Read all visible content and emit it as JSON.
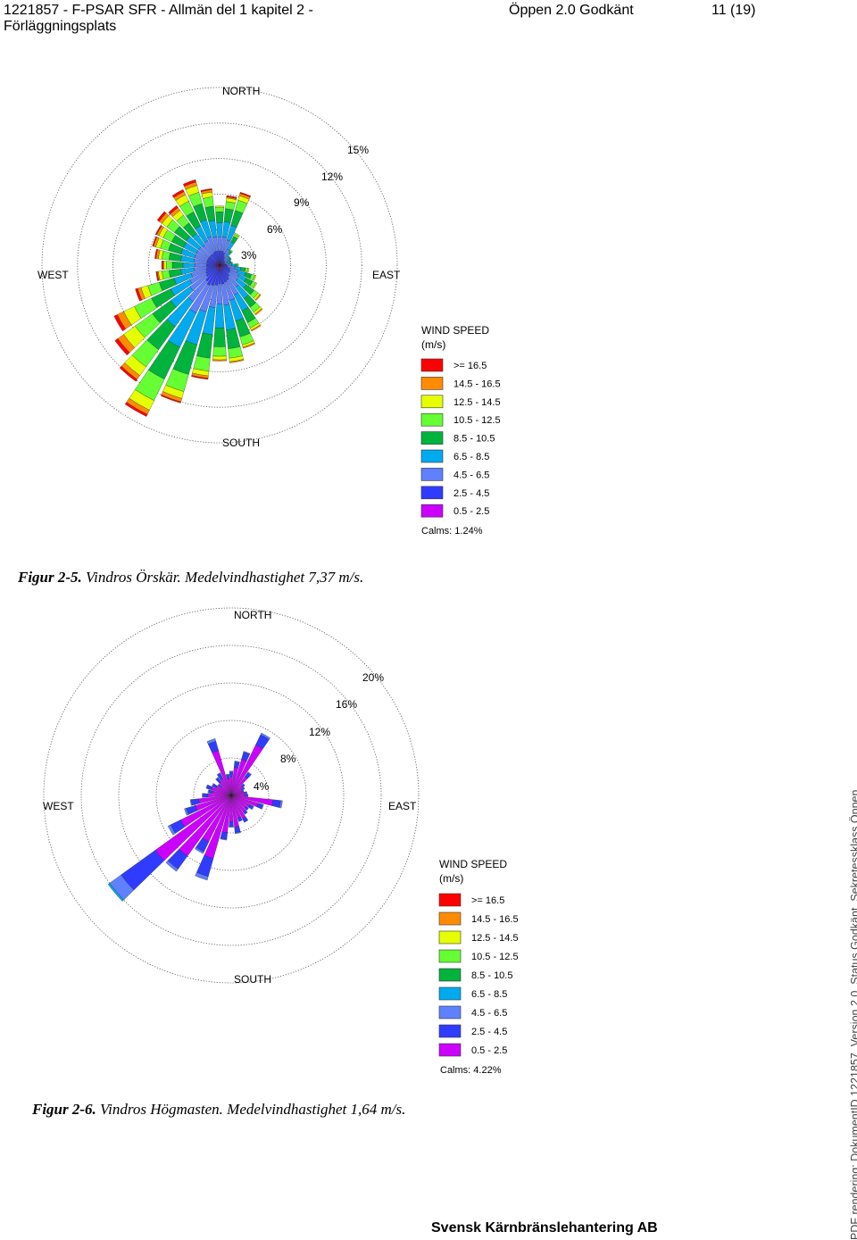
{
  "header": {
    "doc_title_line1": "1221857  - F-PSAR SFR - Allmän del 1 kapitel 2 -",
    "doc_title_line2": "Förläggningsplats",
    "status": "Öppen  2.0  Godkänt",
    "page": "11 (19)"
  },
  "legend_colors": [
    "#ff0000",
    "#ff8c00",
    "#e6ff00",
    "#66ff33",
    "#00b33c",
    "#00aaee",
    "#5f80ff",
    "#2f3cff",
    "#cc00ff"
  ],
  "figures": [
    {
      "compass": {
        "north": "NORTH",
        "south": "SOUTH",
        "east": "EAST",
        "west": "WEST"
      },
      "ring_labels": [
        "3%",
        "6%",
        "9%",
        "12%",
        "15%"
      ],
      "legend_title_1": "WIND SPEED",
      "legend_title_2": "(m/s)",
      "legend_items": [
        ">= 16.5",
        "14.5 - 16.5",
        "12.5 - 14.5",
        "10.5 - 12.5",
        "8.5 - 10.5",
        "6.5 -  8.5",
        "4.5 -  6.5",
        "2.5 -  4.5",
        "0.5 -  2.5"
      ],
      "calms": "Calms: 1.24%",
      "caption_bold": "Figur 2-5.",
      "caption_text": " Vindros Örskär. Medelvindhastighet 7,37 m/s."
    },
    {
      "compass": {
        "north": "NORTH",
        "south": "SOUTH",
        "east": "EAST",
        "west": "WEST"
      },
      "ring_labels": [
        "4%",
        "8%",
        "12%",
        "16%",
        "20%"
      ],
      "legend_title_1": "WIND SPEED",
      "legend_title_2": "(m/s)",
      "legend_items": [
        ">= 16.5",
        "14.5 - 16.5",
        "12.5 - 14.5",
        "10.5 - 12.5",
        "8.5 - 10.5",
        "6.5 -  8.5",
        "4.5 -  6.5",
        "2.5 -  4.5",
        "0.5 -  2.5"
      ],
      "calms": "Calms: 4.22%",
      "caption_bold": "Figur 2-6.",
      "caption_text": " Vindros Högmasten. Medelvindhastighet 1,64 m/s."
    }
  ],
  "chart_data": [
    {
      "type": "windrose",
      "ring_step_percent": 3,
      "rmax_percent": 15,
      "sector_width_deg": 10,
      "directions_deg": [
        0,
        10,
        20,
        30,
        40,
        50,
        60,
        70,
        80,
        90,
        100,
        110,
        120,
        130,
        140,
        150,
        160,
        170,
        180,
        190,
        200,
        210,
        220,
        230,
        240,
        250,
        260,
        270,
        280,
        290,
        300,
        310,
        320,
        330,
        340,
        350
      ],
      "speed_classes": [
        "0.5 -  2.5",
        "2.5 -  4.5",
        "4.5 -  6.5",
        "6.5 -  8.5",
        "8.5 - 10.5",
        "10.5 - 12.5",
        "12.5 - 14.5",
        "14.5 - 16.5",
        ">= 16.5"
      ],
      "bins_percent": [
        [
          0.3,
          0.9,
          1.2,
          1.2,
          0.9,
          0.4,
          0.1,
          0.0,
          0.0
        ],
        [
          0.3,
          0.9,
          1.2,
          1.3,
          1.1,
          0.6,
          0.3,
          0.1,
          0.1
        ],
        [
          0.3,
          0.8,
          1.1,
          1.3,
          1.3,
          0.9,
          0.4,
          0.2,
          0.1
        ],
        [
          0.2,
          0.6,
          0.7,
          0.7,
          0.5,
          0.2,
          0.1,
          0.0,
          0.0
        ],
        [
          0.2,
          0.4,
          0.4,
          0.3,
          0.2,
          0.1,
          0.0,
          0.0,
          0.0
        ],
        [
          0.2,
          0.3,
          0.3,
          0.2,
          0.1,
          0.0,
          0.0,
          0.0,
          0.0
        ],
        [
          0.2,
          0.3,
          0.3,
          0.2,
          0.1,
          0.0,
          0.0,
          0.0,
          0.0
        ],
        [
          0.1,
          0.3,
          0.3,
          0.2,
          0.1,
          0.0,
          0.0,
          0.0,
          0.0
        ],
        [
          0.2,
          0.3,
          0.3,
          0.2,
          0.1,
          0.0,
          0.0,
          0.0,
          0.0
        ],
        [
          0.2,
          0.4,
          0.4,
          0.3,
          0.2,
          0.1,
          0.0,
          0.0,
          0.0
        ],
        [
          0.2,
          0.5,
          0.6,
          0.5,
          0.4,
          0.2,
          0.1,
          0.0,
          0.0
        ],
        [
          0.3,
          0.6,
          0.7,
          0.7,
          0.5,
          0.3,
          0.1,
          0.0,
          0.0
        ],
        [
          0.3,
          0.7,
          0.8,
          0.7,
          0.6,
          0.3,
          0.1,
          0.0,
          0.0
        ],
        [
          0.3,
          0.7,
          0.9,
          0.9,
          0.8,
          0.4,
          0.2,
          0.1,
          0.0
        ],
        [
          0.3,
          0.9,
          1.1,
          1.2,
          0.9,
          0.5,
          0.2,
          0.1,
          0.0
        ],
        [
          0.4,
          1.0,
          1.4,
          1.5,
          1.1,
          0.5,
          0.2,
          0.1,
          0.0
        ],
        [
          0.4,
          1.1,
          1.6,
          1.8,
          1.4,
          0.7,
          0.2,
          0.1,
          0.0
        ],
        [
          0.4,
          1.2,
          1.8,
          2.1,
          1.6,
          0.8,
          0.3,
          0.1,
          0.0
        ],
        [
          0.4,
          1.2,
          1.7,
          2.0,
          1.6,
          0.8,
          0.3,
          0.1,
          0.0
        ],
        [
          0.4,
          1.3,
          1.9,
          2.3,
          2.0,
          1.1,
          0.4,
          0.2,
          0.1
        ],
        [
          0.4,
          1.4,
          2.3,
          2.9,
          2.6,
          1.5,
          0.6,
          0.3,
          0.1
        ],
        [
          0.4,
          1.5,
          2.6,
          3.2,
          3.0,
          2.0,
          0.9,
          0.4,
          0.2
        ],
        [
          0.4,
          1.3,
          2.1,
          2.6,
          2.4,
          1.8,
          0.9,
          0.4,
          0.2
        ],
        [
          0.3,
          1.1,
          1.7,
          2.0,
          1.9,
          1.8,
          1.2,
          0.6,
          0.3
        ],
        [
          0.3,
          1.0,
          1.5,
          1.8,
          1.8,
          1.6,
          1.0,
          0.6,
          0.3
        ],
        [
          0.3,
          0.9,
          1.3,
          1.5,
          1.3,
          1.0,
          0.6,
          0.3,
          0.2
        ],
        [
          0.3,
          0.8,
          1.1,
          1.1,
          1.0,
          0.6,
          0.3,
          0.1,
          0.1
        ],
        [
          0.3,
          0.8,
          1.0,
          1.0,
          0.9,
          0.5,
          0.2,
          0.1,
          0.1
        ],
        [
          0.3,
          0.8,
          1.1,
          1.1,
          1.0,
          0.6,
          0.3,
          0.2,
          0.1
        ],
        [
          0.3,
          0.8,
          1.1,
          1.2,
          1.1,
          0.7,
          0.4,
          0.2,
          0.1
        ],
        [
          0.3,
          0.8,
          1.1,
          1.2,
          1.1,
          0.8,
          0.4,
          0.2,
          0.1
        ],
        [
          0.3,
          0.8,
          1.1,
          1.3,
          1.2,
          0.8,
          0.5,
          0.3,
          0.2
        ],
        [
          0.3,
          0.8,
          1.0,
          1.2,
          1.1,
          0.8,
          0.5,
          0.3,
          0.2
        ],
        [
          0.3,
          0.8,
          1.2,
          1.4,
          1.3,
          1.0,
          0.6,
          0.3,
          0.2
        ],
        [
          0.3,
          0.9,
          1.3,
          1.5,
          1.4,
          1.0,
          0.6,
          0.3,
          0.2
        ],
        [
          0.3,
          0.9,
          1.2,
          1.4,
          1.2,
          0.8,
          0.4,
          0.2,
          0.1
        ]
      ]
    },
    {
      "type": "windrose",
      "ring_step_percent": 4,
      "rmax_percent": 20,
      "sector_width_deg": 10,
      "directions_deg": [
        0,
        10,
        20,
        30,
        40,
        50,
        60,
        70,
        80,
        90,
        100,
        110,
        120,
        130,
        140,
        150,
        160,
        170,
        180,
        190,
        200,
        210,
        220,
        230,
        240,
        250,
        260,
        270,
        280,
        290,
        300,
        310,
        320,
        330,
        340,
        350
      ],
      "speed_classes": [
        "0.5 -  2.5",
        "2.5 -  4.5",
        "4.5 -  6.5",
        "6.5 -  8.5",
        "8.5 - 10.5",
        "10.5 - 12.5",
        "12.5 - 14.5",
        "14.5 - 16.5",
        ">= 16.5"
      ],
      "bins_percent": [
        [
          2.0,
          0.5,
          0.1,
          0,
          0,
          0,
          0,
          0,
          0
        ],
        [
          3.0,
          0.6,
          0.1,
          0,
          0,
          0,
          0,
          0,
          0
        ],
        [
          4.0,
          0.8,
          0.1,
          0,
          0,
          0,
          0,
          0,
          0
        ],
        [
          6.0,
          1.2,
          0.2,
          0,
          0,
          0,
          0,
          0,
          0
        ],
        [
          2.5,
          0.5,
          0.1,
          0,
          0,
          0,
          0,
          0,
          0
        ],
        [
          1.5,
          0.3,
          0,
          0,
          0,
          0,
          0,
          0,
          0
        ],
        [
          1.3,
          0.3,
          0,
          0,
          0,
          0,
          0,
          0,
          0
        ],
        [
          1.2,
          0.2,
          0,
          0,
          0,
          0,
          0,
          0,
          0
        ],
        [
          1.4,
          0.3,
          0,
          0,
          0,
          0,
          0,
          0,
          0
        ],
        [
          1.5,
          0.3,
          0,
          0,
          0,
          0,
          0,
          0,
          0
        ],
        [
          4.5,
          0.8,
          0.2,
          0,
          0,
          0,
          0,
          0,
          0
        ],
        [
          3.0,
          0.5,
          0.1,
          0,
          0,
          0,
          0,
          0,
          0
        ],
        [
          2.2,
          0.4,
          0.1,
          0,
          0,
          0,
          0,
          0,
          0
        ],
        [
          2.0,
          0.3,
          0,
          0,
          0,
          0,
          0,
          0,
          0
        ],
        [
          2.2,
          0.3,
          0,
          0,
          0,
          0,
          0,
          0,
          0
        ],
        [
          2.8,
          0.4,
          0,
          0,
          0,
          0,
          0,
          0,
          0
        ],
        [
          2.5,
          0.4,
          0,
          0,
          0,
          0,
          0,
          0,
          0
        ],
        [
          3.4,
          0.6,
          0.1,
          0,
          0,
          0,
          0,
          0,
          0
        ],
        [
          2.8,
          0.5,
          0.1,
          0,
          0,
          0,
          0,
          0,
          0
        ],
        [
          4.0,
          0.7,
          0.1,
          0,
          0,
          0,
          0,
          0,
          0
        ],
        [
          7.0,
          2.0,
          0.4,
          0,
          0,
          0,
          0,
          0,
          0
        ],
        [
          5.5,
          1.2,
          0.2,
          0,
          0,
          0,
          0,
          0,
          0
        ],
        [
          8.0,
          1.7,
          0.3,
          0,
          0,
          0,
          0,
          0,
          0
        ],
        [
          10.0,
          4.5,
          1.5,
          0.2,
          0,
          0,
          0,
          0,
          0
        ],
        [
          6.0,
          1.2,
          0.3,
          0,
          0,
          0,
          0,
          0,
          0
        ],
        [
          4.0,
          1.0,
          0.2,
          0,
          0,
          0,
          0,
          0,
          0
        ],
        [
          3.5,
          0.8,
          0.1,
          0,
          0,
          0,
          0,
          0,
          0
        ],
        [
          2.5,
          0.5,
          0.1,
          0,
          0,
          0,
          0,
          0,
          0
        ],
        [
          2.0,
          0.4,
          0.1,
          0,
          0,
          0,
          0,
          0,
          0
        ],
        [
          2.2,
          0.5,
          0.1,
          0,
          0,
          0,
          0,
          0,
          0
        ],
        [
          1.8,
          0.4,
          0.1,
          0,
          0,
          0,
          0,
          0,
          0
        ],
        [
          1.4,
          0.3,
          0.1,
          0,
          0,
          0,
          0,
          0,
          0
        ],
        [
          1.8,
          0.5,
          0.1,
          0,
          0,
          0,
          0,
          0,
          0
        ],
        [
          2.0,
          0.6,
          0.1,
          0,
          0,
          0,
          0,
          0,
          0
        ],
        [
          5.0,
          1.0,
          0.3,
          0,
          0,
          0,
          0,
          0,
          0
        ],
        [
          1.8,
          0.4,
          0.1,
          0,
          0,
          0,
          0,
          0,
          0
        ]
      ]
    }
  ],
  "footer": "Svensk Kärnbränslehantering AB",
  "sidebar": "PDF rendering: DokumentID 1221857, Version 2.0, Status Godkänt, Sekretessklass Öppen"
}
